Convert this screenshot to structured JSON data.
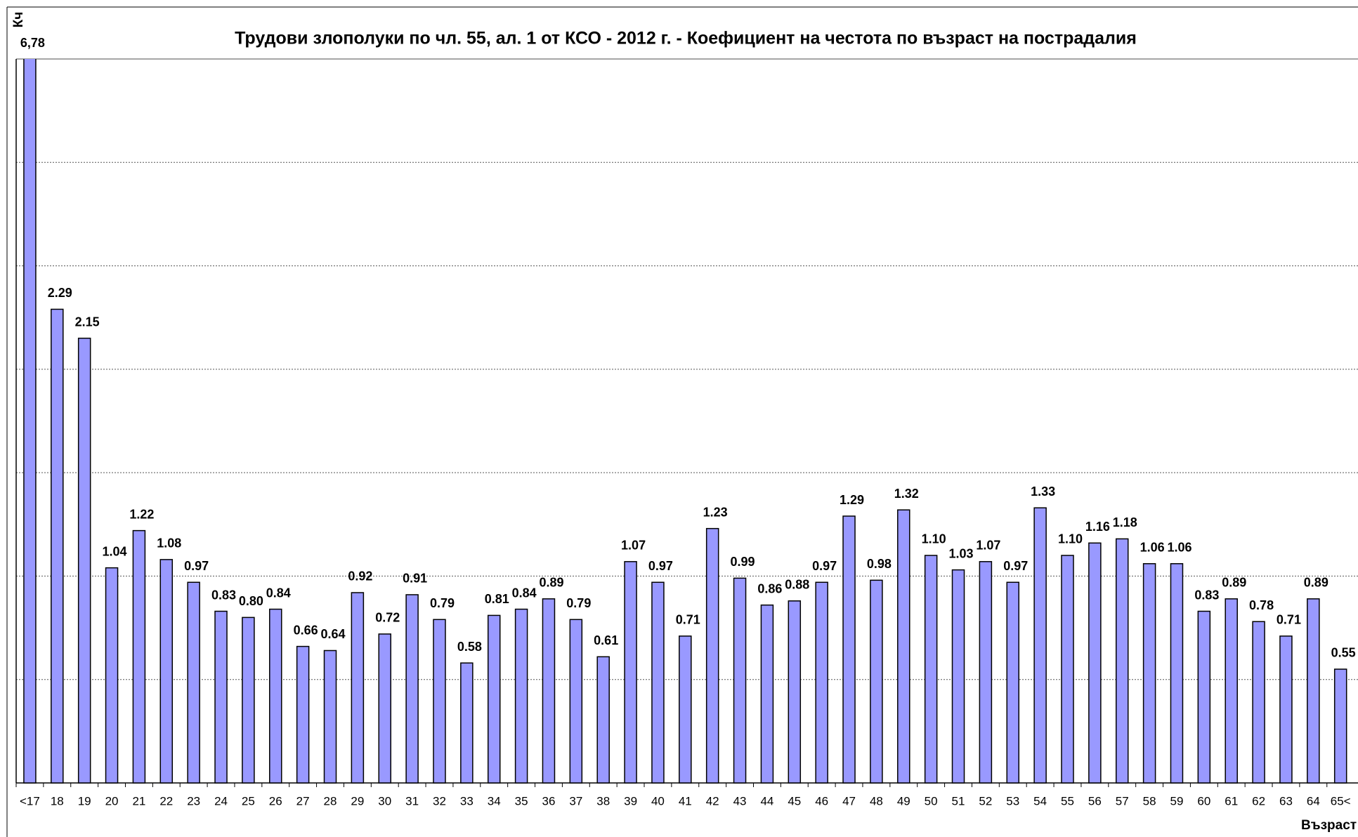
{
  "chart_data": {
    "type": "bar",
    "title": "Трудови злополуки по чл. 55, ал. 1 от КСО - 2012 г. - Коефициент на честота по възраст на пострадалия",
    "y_label": "Кч",
    "x_label": "Възраст",
    "categories": [
      "<17",
      "18",
      "19",
      "20",
      "21",
      "22",
      "23",
      "24",
      "25",
      "26",
      "27",
      "28",
      "29",
      "30",
      "31",
      "32",
      "33",
      "34",
      "35",
      "36",
      "37",
      "38",
      "39",
      "40",
      "41",
      "42",
      "43",
      "44",
      "45",
      "46",
      "47",
      "48",
      "49",
      "50",
      "51",
      "52",
      "53",
      "54",
      "55",
      "56",
      "57",
      "58",
      "59",
      "60",
      "61",
      "62",
      "63",
      "64",
      "65<"
    ],
    "values": [
      6.78,
      2.29,
      2.15,
      1.04,
      1.22,
      1.08,
      0.97,
      0.83,
      0.8,
      0.84,
      0.66,
      0.64,
      0.92,
      0.72,
      0.91,
      0.79,
      0.58,
      0.81,
      0.84,
      0.89,
      0.79,
      0.61,
      1.07,
      0.97,
      0.71,
      1.23,
      0.99,
      0.86,
      0.88,
      0.97,
      1.29,
      0.98,
      1.32,
      1.1,
      1.03,
      1.07,
      0.97,
      1.33,
      1.1,
      1.16,
      1.18,
      1.06,
      1.06,
      0.83,
      0.89,
      0.78,
      0.71,
      0.89,
      0.55
    ],
    "value_labels": [
      "6,78",
      "2.29",
      "2.15",
      "1.04",
      "1.22",
      "1.08",
      "0.97",
      "0.83",
      "0.80",
      "0.84",
      "0.66",
      "0.64",
      "0.92",
      "0.72",
      "0.91",
      "0.79",
      "0.58",
      "0.81",
      "0.84",
      "0.89",
      "0.79",
      "0.61",
      "1.07",
      "0.97",
      "0.71",
      "1.23",
      "0.99",
      "0.86",
      "0.88",
      "0.97",
      "1.29",
      "0.98",
      "1.32",
      "1.10",
      "1.03",
      "1.07",
      "0.97",
      "1.33",
      "1.10",
      "1.16",
      "1.18",
      "1.06",
      "1.06",
      "0.83",
      "0.89",
      "0.78",
      "0.71",
      "0.89",
      "0.55"
    ],
    "color": "#9999ff",
    "ylim": [
      0,
      3.5
    ],
    "yticks": [
      0,
      0.5,
      1,
      1.5,
      2,
      2.5,
      3,
      3.5
    ],
    "grid": true
  }
}
